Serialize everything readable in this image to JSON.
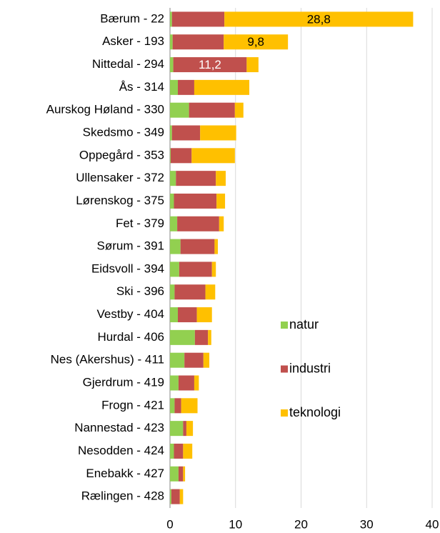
{
  "chart_data": {
    "type": "stacked_barh",
    "categories": [
      "Bærum - 22",
      "Asker - 193",
      "Nittedal - 294",
      "Ås - 314",
      "Aurskog Høland - 330",
      "Skedsmo - 349",
      "Oppegård - 353",
      "Ullensaker - 372",
      "Lørenskog - 375",
      "Fet - 379",
      "Sørum - 391",
      "Eidsvoll - 394",
      "Ski - 396",
      "Vestby - 404",
      "Hurdal - 406",
      "Nes (Akershus) - 411",
      "Gjerdrum - 419",
      "Frogn - 421",
      "Nannestad - 423",
      "Nesodden - 424",
      "Enebakk - 427",
      "Rælingen - 428"
    ],
    "series": [
      {
        "name": "natur",
        "color": "#92d050",
        "values": [
          0.3,
          0.4,
          0.5,
          1.2,
          2.9,
          0.3,
          0.1,
          0.9,
          0.6,
          1.1,
          1.6,
          1.4,
          0.7,
          1.2,
          3.8,
          2.2,
          1.3,
          0.7,
          2.0,
          0.6,
          1.3,
          0.2
        ]
      },
      {
        "name": "industri",
        "color": "#c0504d",
        "values": [
          8.0,
          7.8,
          11.2,
          2.5,
          7.0,
          4.3,
          3.2,
          6.1,
          6.5,
          6.4,
          5.2,
          5.0,
          4.7,
          2.9,
          2.0,
          2.9,
          2.4,
          1.0,
          0.5,
          1.4,
          0.7,
          1.3
        ],
        "value_labels": [
          null,
          null,
          "11,2",
          null,
          null,
          null,
          null,
          null,
          null,
          null,
          null,
          null,
          null,
          null,
          null,
          null,
          null,
          null,
          null,
          null,
          null,
          null
        ]
      },
      {
        "name": "teknologi",
        "color": "#ffc000",
        "values": [
          28.8,
          9.8,
          1.8,
          8.4,
          1.3,
          5.5,
          6.6,
          1.5,
          1.3,
          0.7,
          0.5,
          0.6,
          1.5,
          2.3,
          0.5,
          0.9,
          0.7,
          2.5,
          1.0,
          1.4,
          0.3,
          0.5
        ],
        "value_labels": [
          "28,8",
          "9,8",
          null,
          null,
          null,
          null,
          null,
          null,
          null,
          null,
          null,
          null,
          null,
          null,
          null,
          null,
          null,
          null,
          null,
          null,
          null,
          null
        ]
      }
    ],
    "xlim": [
      0,
      40
    ],
    "xticks": [
      0,
      10,
      20,
      30,
      40
    ],
    "grid": true,
    "legend": "lower right"
  }
}
